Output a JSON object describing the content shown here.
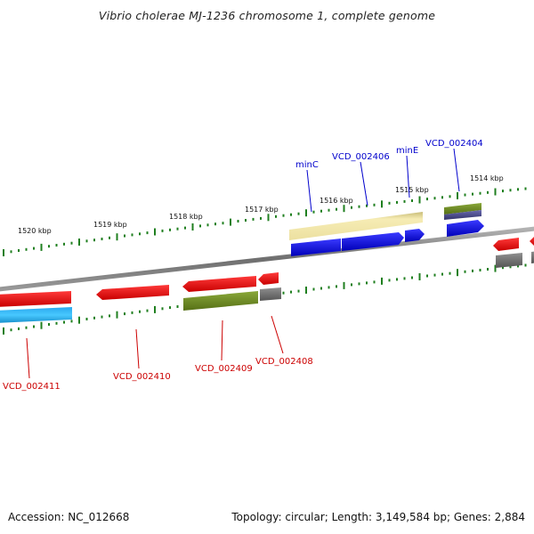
{
  "title": "Vibrio cholerae MJ-1236 chromosome 1, complete genome",
  "footer": {
    "accession": "Accession: NC_012668",
    "topology": "Topology: circular; Length: 3,149,584 bp; Genes: 2,884"
  },
  "ruler_labels": [
    {
      "text": "1520 kbp"
    },
    {
      "text": "1519 kbp"
    },
    {
      "text": "1518 kbp"
    },
    {
      "text": "1517 kbp"
    },
    {
      "text": "1516 kbp"
    },
    {
      "text": "1515 kbp"
    },
    {
      "text": "1514 kbp"
    }
  ],
  "gene_labels_top": [
    {
      "text": "minC",
      "color": "#0000cc"
    },
    {
      "text": "VCD_002406",
      "color": "#0000cc"
    },
    {
      "text": "minE",
      "color": "#0000cc"
    },
    {
      "text": "VCD_002404",
      "color": "#0000cc"
    }
  ],
  "gene_labels_bottom": [
    {
      "text": "VCD_002411",
      "color": "#cc0000"
    },
    {
      "text": "VCD_002410",
      "color": "#cc0000"
    },
    {
      "text": "VCD_002409",
      "color": "#cc0000"
    },
    {
      "text": "VCD_002408",
      "color": "#cc0000"
    }
  ],
  "colors": {
    "backbone": "#8a8a8a",
    "tick": "#1f7f1f",
    "forward_cds": "#0a0ad8",
    "reverse_cds": "#ee0a0a",
    "cog_yellow": "#f2e6a4",
    "cog_olive": "#6b8a22",
    "cog_grey": "#6a6a6a",
    "cog_cyan": "#19b8ee",
    "cog_slate": "#4a4a88"
  }
}
